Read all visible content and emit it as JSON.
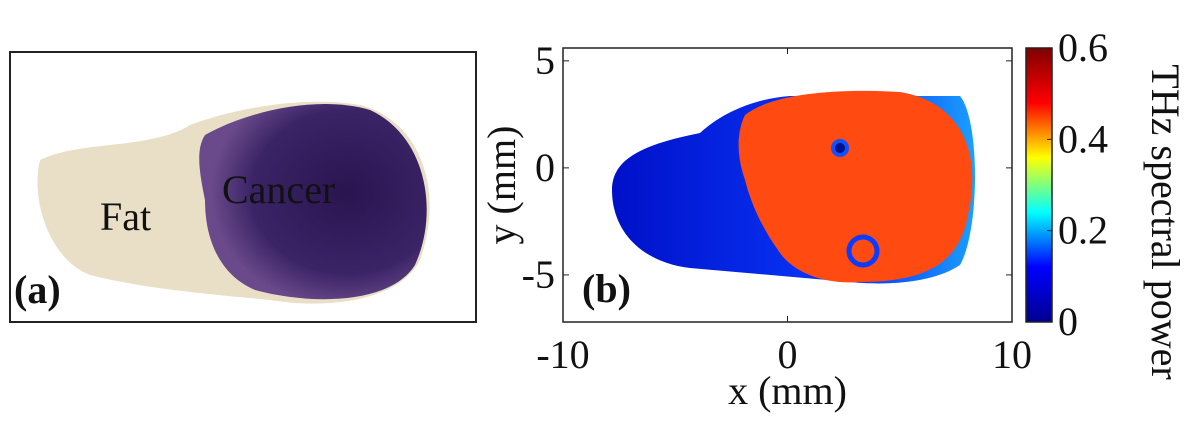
{
  "chart_data": [
    {
      "type": "image",
      "panel_label": "(a)",
      "annotations": [
        {
          "text": "Fat",
          "color": "#1a1a1a"
        },
        {
          "text": "Cancer",
          "color": "#e0161b"
        }
      ]
    },
    {
      "type": "heatmap",
      "panel_label": "(b)",
      "xlabel": "x (mm)",
      "ylabel": "y (mm)",
      "xlim": [
        -10,
        10
      ],
      "xticks": [
        -10,
        0,
        10
      ],
      "ylim": [
        -7.2,
        5.6
      ],
      "yticks": [
        -5,
        0,
        5
      ],
      "colorbar": {
        "label": "THz spectral power",
        "lim": [
          0,
          0.6
        ],
        "ticks": [
          0,
          0.2,
          0.4,
          0.6
        ],
        "colors": [
          "#00008f",
          "#0000ff",
          "#00ffff",
          "#ffff00",
          "#ff0000",
          "#800000"
        ]
      }
    }
  ]
}
